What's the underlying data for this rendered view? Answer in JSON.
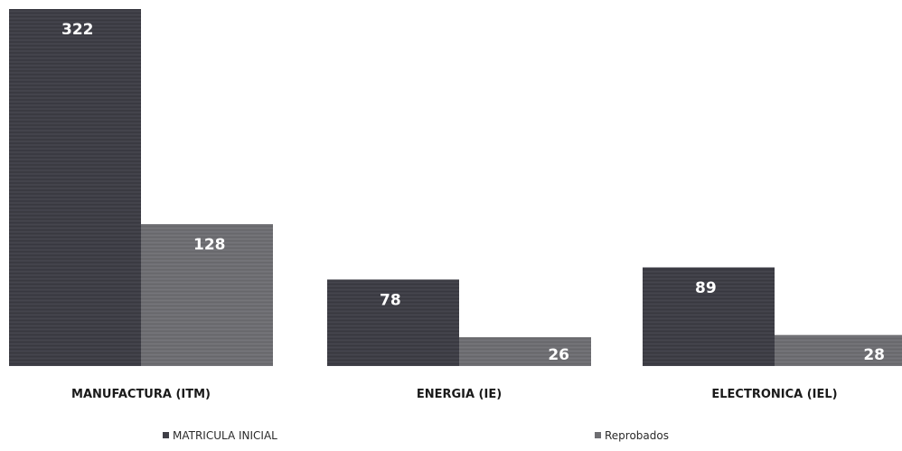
{
  "chart_data": {
    "type": "bar",
    "categories": [
      "MANUFACTURA (ITM)",
      "ENERGIA (IE)",
      "ELECTRONICA (IEL)"
    ],
    "series": [
      {
        "name": "MATRICULA INICIAL",
        "values": [
          322,
          78,
          89
        ],
        "color": "#3f3f47"
      },
      {
        "name": "Reprobados",
        "values": [
          128,
          26,
          28
        ],
        "color": "#6e6e72"
      }
    ],
    "ylim": [
      0,
      322
    ],
    "data_labels": true,
    "grid": false,
    "legend_position": "bottom",
    "title": "",
    "xlabel": "",
    "ylabel": ""
  }
}
